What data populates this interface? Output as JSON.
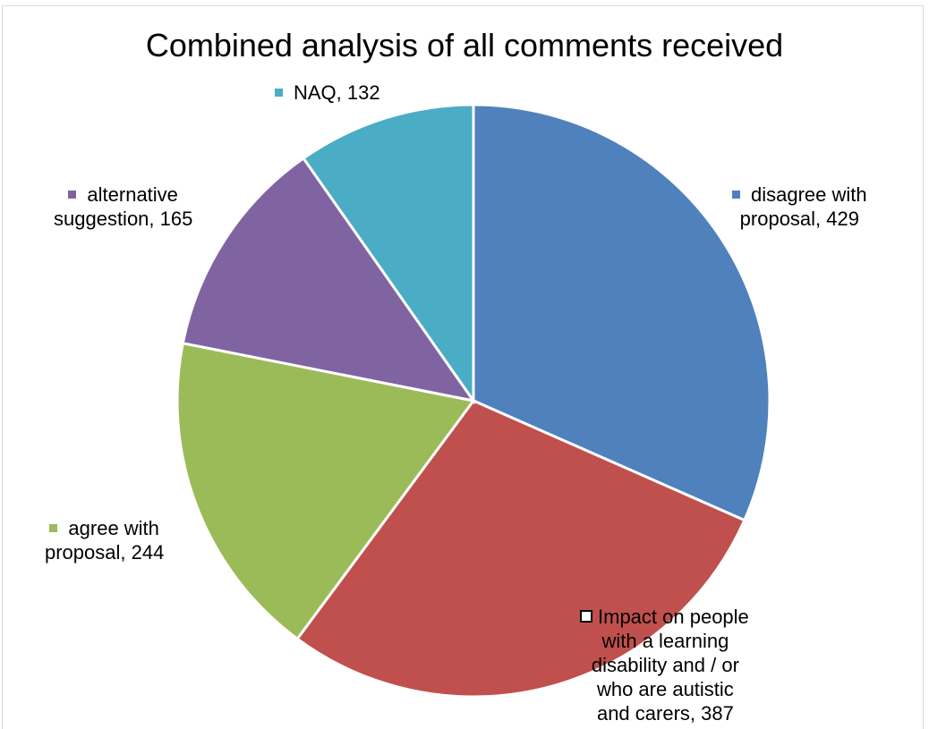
{
  "chart_data": {
    "type": "pie",
    "title": "Combined analysis of all comments received",
    "slices": [
      {
        "label": "disagree with proposal",
        "value": 429,
        "color": "#4f81bd"
      },
      {
        "label": "Impact on people with a learning disability and / or who are autistic and carers",
        "value": 387,
        "color": "#c0504d"
      },
      {
        "label": "agree with proposal",
        "value": 244,
        "color": "#9bbb59"
      },
      {
        "label": "alternative suggestion",
        "value": 165,
        "color": "#8064a2"
      },
      {
        "label": "NAQ",
        "value": 132,
        "color": "#4bacc6"
      }
    ],
    "data_labels": {
      "disagree": [
        "disagree with",
        "proposal, 429"
      ],
      "impact": [
        "Impact on people",
        "with a learning",
        "disability and / or",
        "who are autistic",
        "and carers, 387"
      ],
      "agree": [
        "agree with",
        "proposal, 244"
      ],
      "alternative": [
        "alternative",
        "suggestion, 165"
      ],
      "naq": [
        "NAQ, 132"
      ]
    }
  }
}
